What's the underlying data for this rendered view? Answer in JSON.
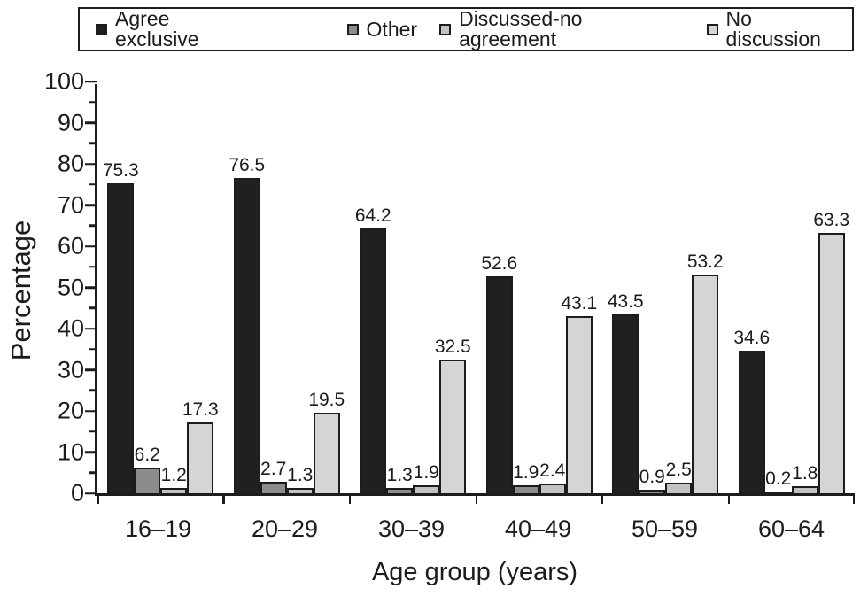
{
  "chart_data": {
    "type": "bar",
    "title": "",
    "xlabel": "Age group (years)",
    "ylabel": "Percentage",
    "ylim": [
      0,
      100
    ],
    "y_major_step": 10,
    "y_minor_step": 5,
    "grid": false,
    "legend_position": "top",
    "value_labels": true,
    "categories": [
      "16–19",
      "20–29",
      "30–39",
      "40–49",
      "50–59",
      "60–64"
    ],
    "series": [
      {
        "name": "Agree exclusive",
        "color": "#221f20",
        "values": [
          75.3,
          76.5,
          64.2,
          52.6,
          43.5,
          34.6
        ]
      },
      {
        "name": "Other",
        "color": "#8c8c8c",
        "values": [
          6.2,
          2.7,
          1.3,
          1.9,
          0.9,
          0.2
        ]
      },
      {
        "name": "Discussed-no agreement",
        "color": "#c3c3c3",
        "values": [
          1.2,
          1.3,
          1.9,
          2.4,
          2.5,
          1.8
        ]
      },
      {
        "name": "No discussion",
        "color": "#d5d5d5",
        "values": [
          17.3,
          19.5,
          32.5,
          43.1,
          53.2,
          63.3
        ]
      }
    ],
    "axis_color": "#1d1b1c"
  }
}
